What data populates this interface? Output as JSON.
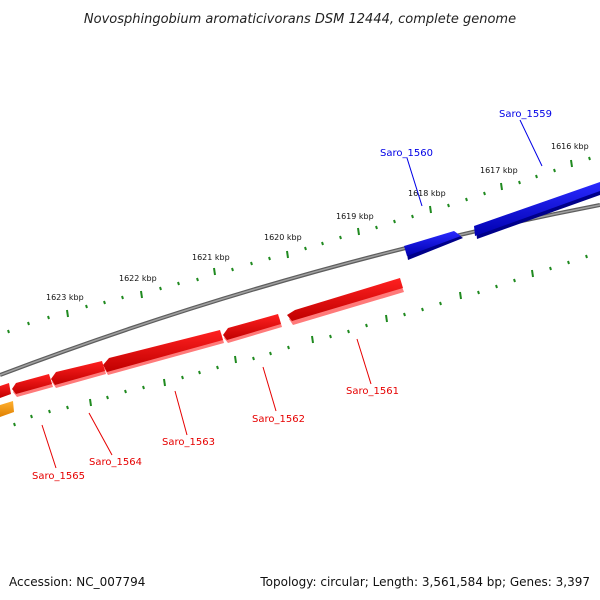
{
  "title": "Novosphingobium aromaticivorans DSM 12444, complete genome",
  "footer": {
    "accession": "Accession: NC_007794",
    "topology": "Topology: circular; Length: 3,561,584 bp; Genes: 3,397"
  },
  "colors": {
    "forward_gene": "#0000e6",
    "reverse_gene": "#ff0000",
    "other_gene": "#ff9900",
    "backbone": "#808080",
    "tick": "#228b22"
  },
  "scale_labels": [
    "1616 kbp",
    "1617 kbp",
    "1618 kbp",
    "1619 kbp",
    "1620 kbp",
    "1621 kbp",
    "1622 kbp",
    "1623 kbp"
  ],
  "genes_forward": [
    "Saro_1559",
    "Saro_1560"
  ],
  "genes_reverse": [
    "Saro_1561",
    "Saro_1562",
    "Saro_1563",
    "Saro_1564",
    "Saro_1565"
  ]
}
